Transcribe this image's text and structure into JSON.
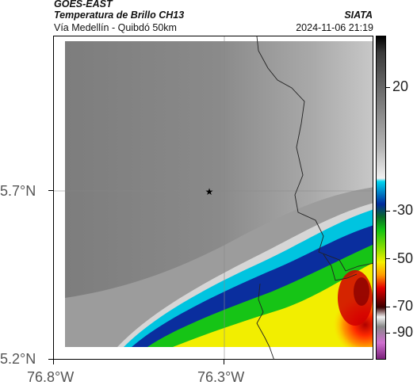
{
  "header": {
    "satellite": "GOES-EAST",
    "product": "Temperatura de Brillo CH13",
    "region": "Vía Medellín - Quibdó 50km",
    "agency": "SIATA",
    "datetime": "2024-11-06 21:19"
  },
  "map": {
    "lat_ticks": [
      "5.7°N",
      "5.2°N"
    ],
    "lon_ticks": [
      "76.8°W",
      "76.3°W"
    ],
    "marker": "star-icon"
  },
  "colorbar": {
    "ticks": [
      "20",
      "-30",
      "-50",
      "-70",
      "-90"
    ],
    "colors": {
      "warm_gray": "#7a7a7a",
      "light_gray": "#d8d8d8",
      "cyan": "#00c8e6",
      "blue": "#002a9c",
      "green": "#12c312",
      "yellow": "#f5f000",
      "orange": "#ff8c00",
      "red": "#e40000",
      "dark_red": "#5a0000",
      "magenta": "#b040b0"
    }
  }
}
